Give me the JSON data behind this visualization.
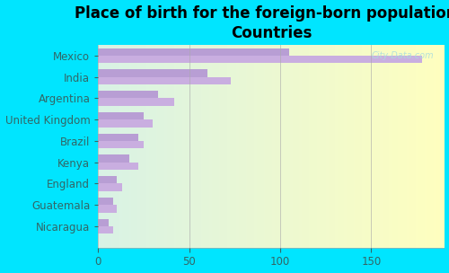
{
  "title": "Place of birth for the foreign-born population -\nCountries",
  "categories": [
    "Mexico",
    "India",
    "Argentina",
    "United Kingdom",
    "Brazil",
    "Kenya",
    "England",
    "Guatemala",
    "Nicaragua"
  ],
  "bar1_values": [
    178,
    73,
    42,
    30,
    25,
    22,
    13,
    10,
    8
  ],
  "bar2_values": [
    105,
    60,
    33,
    25,
    22,
    17,
    10,
    8,
    6
  ],
  "bar1_color": "#c9aee0",
  "bar2_color": "#b89ed4",
  "background_outer": "#00e5ff",
  "xlim": [
    0,
    190
  ],
  "xticks": [
    0,
    50,
    100,
    150
  ],
  "bar_height": 0.35,
  "title_fontsize": 12,
  "tick_fontsize": 8.5,
  "watermark": "City-Data.com",
  "grid_color": "#cccccc"
}
